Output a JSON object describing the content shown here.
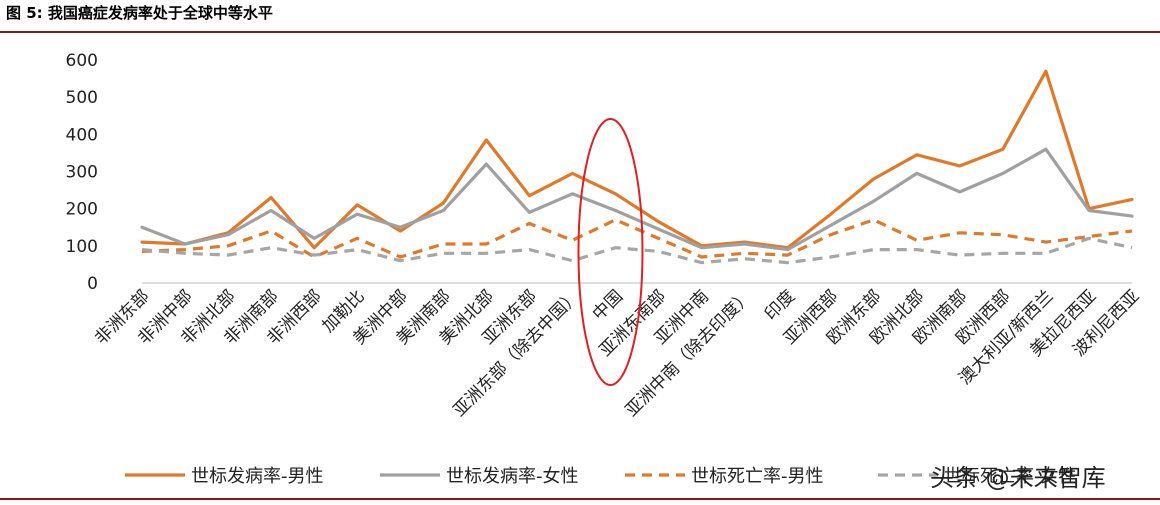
{
  "figure": {
    "title": "图 5:  我国癌症发病率处于全球中等水平",
    "watermark": "头条 @未来智库"
  },
  "chart_data": {
    "type": "line",
    "categories": [
      "非洲东部",
      "非洲中部",
      "非洲北部",
      "非洲南部",
      "非洲西部",
      "加勒比",
      "美洲中部",
      "美洲南部",
      "美洲北部",
      "亚洲东部",
      "亚洲东部（除去中国）",
      "中国",
      "亚洲东南部",
      "亚洲中南",
      "亚洲中南（除去印度）",
      "印度",
      "亚洲西部",
      "欧洲东部",
      "欧洲北部",
      "欧洲南部",
      "欧洲西部",
      "澳大利亚/新西兰",
      "美拉尼西亚",
      "波利尼西亚"
    ],
    "series": [
      {
        "name": "世标发病率-男性",
        "style": "solid",
        "color": "#e07a2a",
        "values": [
          110,
          105,
          135,
          230,
          95,
          210,
          140,
          215,
          385,
          235,
          295,
          240,
          165,
          100,
          110,
          95,
          185,
          280,
          345,
          315,
          360,
          570,
          200,
          225
        ]
      },
      {
        "name": "世标发病率-女性",
        "style": "solid",
        "color": "#a0a0a0",
        "values": [
          150,
          105,
          130,
          195,
          120,
          185,
          150,
          195,
          320,
          190,
          240,
          195,
          145,
          95,
          105,
          90,
          155,
          220,
          295,
          245,
          295,
          360,
          195,
          180
        ]
      },
      {
        "name": "世标死亡率-男性",
        "style": "dashed",
        "color": "#e07a2a",
        "values": [
          85,
          90,
          100,
          140,
          70,
          120,
          70,
          105,
          105,
          160,
          115,
          170,
          120,
          70,
          80,
          75,
          130,
          170,
          115,
          135,
          130,
          110,
          125,
          140
        ]
      },
      {
        "name": "世标死亡率-女性",
        "style": "dashed",
        "color": "#a6a6a6",
        "values": [
          90,
          80,
          75,
          95,
          75,
          90,
          60,
          80,
          80,
          90,
          60,
          95,
          85,
          55,
          65,
          55,
          70,
          90,
          90,
          75,
          80,
          80,
          120,
          95
        ]
      }
    ],
    "ylim": [
      0,
      600
    ],
    "yticks": [
      0,
      100,
      200,
      300,
      400,
      500,
      600
    ],
    "xlabel": "",
    "ylabel": "",
    "grid": false,
    "legend": "bottom",
    "annotation": {
      "type": "ellipse",
      "category": "中国",
      "color": "#e02020"
    }
  }
}
